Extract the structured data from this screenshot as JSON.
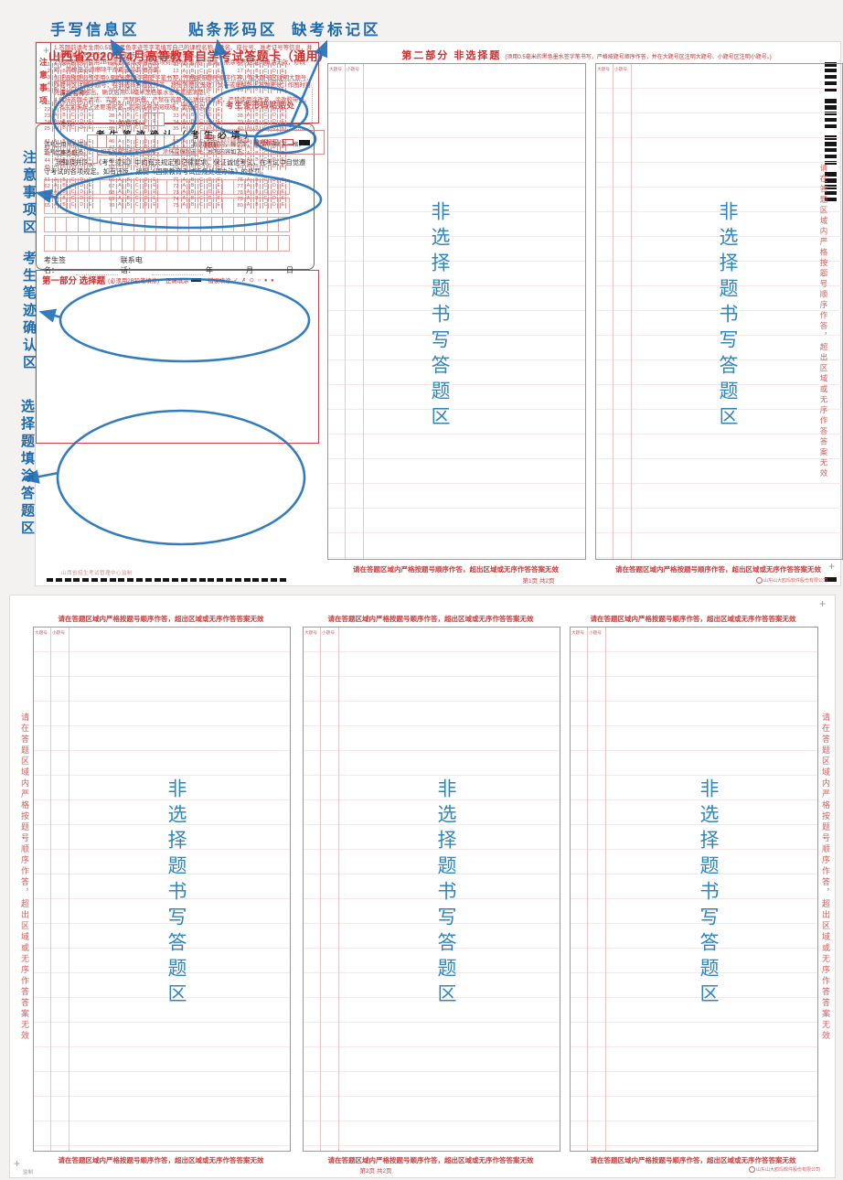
{
  "annotations": {
    "top_labels": [
      "手写信息区",
      "贴条形码区",
      "缺考标记区"
    ],
    "left_labels": [
      "注意事项区",
      "考生笔迹确认区",
      "选择题填涂答题区"
    ],
    "accent_color": "#2176c7"
  },
  "misc": {
    "plus": "+"
  },
  "page1": {
    "title": "山西省2020年4月高等教育自学考试答题卡（通用）",
    "form": {
      "course_label": "课程名称：",
      "name_label": "姓名：",
      "seat_label": "座位号：",
      "ticket_label": "准考证号：",
      "seat_boxes": 2,
      "ticket_boxes": 12
    },
    "barcode_label": "考生条形码粘贴处",
    "forbid": {
      "label": "考生禁填",
      "tiny": "缺考考生由监考员用黑色字迹签字笔填涂右边的缺考标记",
      "absent_label": "缺考标记"
    },
    "notice": {
      "side_label": "注意事项",
      "items": [
        "1.答题前请考生用0.5毫米黑色字迹签字笔填写自己的课程名称、姓名、座位号、准考证号等信息，并认真核准条形码信息，在答题卡上指定位置粘贴条形码。",
        "2.选择题必须使用2B铅笔规范填涂答案选项对应的信息点，黑满、擦涂等不规范的填涂无效，修改时，用橡皮必须擦除干净再选涂其他答案。",
        "3.非选择题必须使用0.5毫米黑色字迹签字笔书写，严格按照题号顺序作答，在大题号区注明大题号、小题号区注明小题号；在非选择答题区作答，超出答题区无效，试卷或草稿纸上答题无效。作图时可先用2B铅笔绘出，确认后用0.5毫米黑色墨水签字笔描清楚。",
        "4.保持答题卡清洁、完整，严禁折叠，严禁在答题卡上做任何标记，严禁使用涂改液、涂改胶带纸。",
        "5.考生如未按上述要求作答，影响试卷评阅成绩，责任自负。"
      ]
    },
    "confirm": {
      "title": "考 生 笔 迹 确 认 （ 考 生 必 填 ）",
      "note_black1": "请考生用黑色字迹签字笔将下列内容认真、完整地抄写在下面规定区域内，每个字、标点符号各占一格，签考生本人姓名。",
      "note_red": "考生如未按要求抄写并签字，涂抹或模糊无效。",
      "note_black2": "抄写内容如下：",
      "pledge": "我知晓并同意《考生须知》中的有关规定和纪律要求，保证诚信考试，在考试中自觉遵守考试的各项规定。如有违反，接受《国家教育考试违规处理办法》的处罚。",
      "grid_rows": 4,
      "grid_cols": 22,
      "sign_label": "考生签名：",
      "phone_label": "联系电话：",
      "date_label": "年　月　日"
    },
    "part1": {
      "title": "第一部分 选择题",
      "subtitle": "(必须用2B铅笔填涂)",
      "correct_label": "正确填涂",
      "wrong_label": "错误填涂",
      "wrong_examples": "✓ ✗ ⊙ ○ ● ●",
      "options": [
        "A",
        "B",
        "C",
        "D",
        "E"
      ],
      "blocks": 4,
      "rows_per_block": 5,
      "groups": 4,
      "group_step": 5,
      "block_step": 20,
      "dash_count": 27
    },
    "footer_left": "山西省招生考试管理中心监制",
    "part2": {
      "title": "第二部分 非选择题",
      "note": "(须用0.5毫米的黑色墨水签字笔书写，严格按题号顺序作答，并在大题号区注明大题号、小题号区注明小题号。)",
      "big_label": "大题号",
      "small_label": "小题号",
      "region_label": "非选择题书写答题区",
      "warning": "请在答题区域内严格按题号顺序作答，超出区域或无序作答答案无效"
    },
    "page_num": "第1页 共2页",
    "publisher": "山东山大鸥玛软件股份有限公司"
  },
  "page2": {
    "warning": "请在答题区域内严格按题号顺序作答，超出区域或无序作答答案无效",
    "big_label": "大题号",
    "small_label": "小题号",
    "region_label": "非选择题书写答题区",
    "page_num": "第2页 共2页",
    "footer_left": "监制",
    "publisher": "山东山大鸥玛软件股份有限公司"
  }
}
